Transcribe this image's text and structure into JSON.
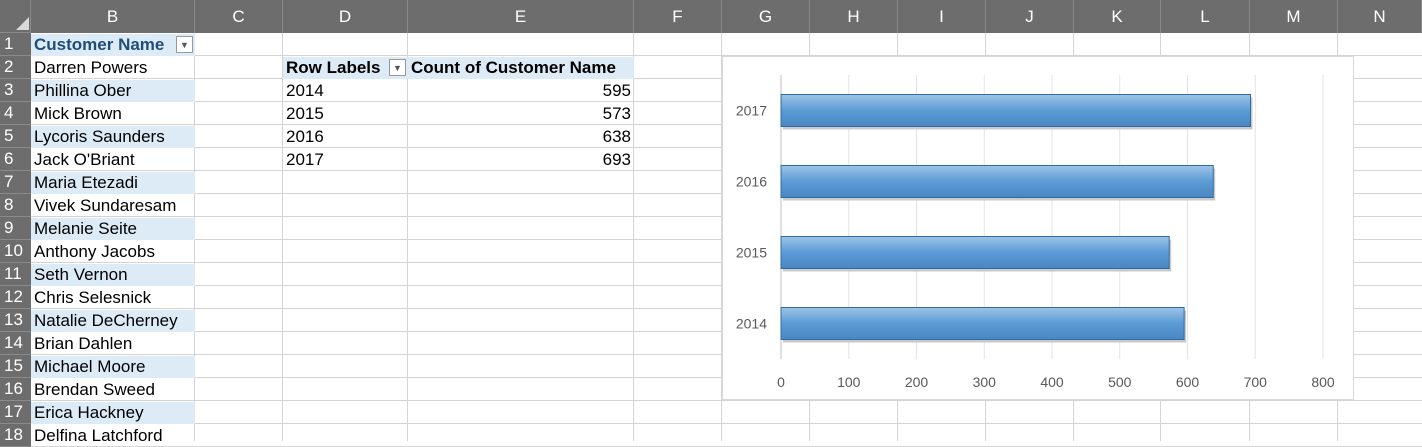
{
  "columns": [
    "B",
    "C",
    "D",
    "E",
    "F",
    "G",
    "H",
    "I",
    "J",
    "K",
    "L",
    "M",
    "N"
  ],
  "rows": [
    "1",
    "2",
    "3",
    "4",
    "5",
    "6",
    "7",
    "8",
    "9",
    "10",
    "11",
    "12",
    "13",
    "14",
    "15",
    "16",
    "17",
    "18"
  ],
  "table": {
    "header": "Customer Name",
    "names": [
      "Darren Powers",
      "Phillina Ober",
      "Mick Brown",
      "Lycoris Saunders",
      "Jack O'Briant",
      "Maria Etezadi",
      "Vivek Sundaresam",
      "Melanie Seite",
      "Anthony Jacobs",
      "Seth Vernon",
      "Chris Selesnick",
      "Natalie DeCherney",
      "Brian Dahlen",
      "Michael Moore",
      "Brendan Sweed",
      "Erica Hackney",
      "Delfina Latchford"
    ]
  },
  "pivot": {
    "row_labels": "Row Labels",
    "value_header": "Count of Customer Name",
    "rows": [
      {
        "label": "2014",
        "value": "595"
      },
      {
        "label": "2015",
        "value": "573"
      },
      {
        "label": "2016",
        "value": "638"
      },
      {
        "label": "2017",
        "value": "693"
      }
    ]
  },
  "chart_data": {
    "type": "bar",
    "orientation": "horizontal",
    "categories": [
      "2014",
      "2015",
      "2016",
      "2017"
    ],
    "values": [
      595,
      573,
      638,
      693
    ],
    "xlim": [
      0,
      800
    ],
    "xticks": [
      "0",
      "100",
      "200",
      "300",
      "400",
      "500",
      "600",
      "700",
      "800"
    ],
    "grid": true,
    "bar_color": "#5b9bd5"
  }
}
